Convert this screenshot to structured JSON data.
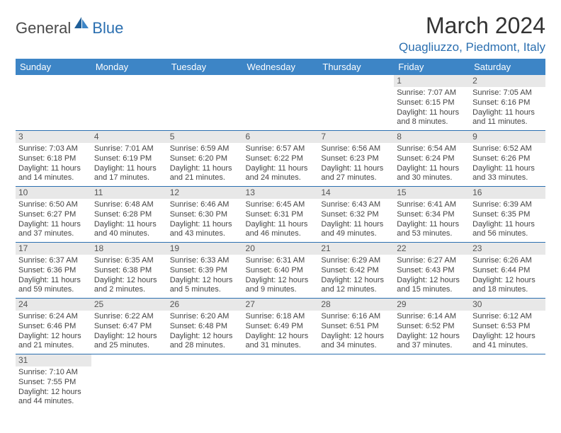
{
  "logo": {
    "part1": "General",
    "part2": "Blue"
  },
  "title": "March 2024",
  "subtitle": "Quagliuzzo, Piedmont, Italy",
  "colors": {
    "header_bg": "#3d85c6",
    "header_fg": "#ffffff",
    "accent": "#2b6fb0",
    "daynum_bg": "#e8e8e8",
    "text": "#333333",
    "detail_text": "#444444",
    "logo_gray": "#4a4a4a"
  },
  "typography": {
    "title_fontsize": 32,
    "subtitle_fontsize": 17,
    "header_fontsize": 13,
    "cell_fontsize": 11,
    "daynum_fontsize": 12,
    "logo_fontsize": 22
  },
  "weekdays": [
    "Sunday",
    "Monday",
    "Tuesday",
    "Wednesday",
    "Thursday",
    "Friday",
    "Saturday"
  ],
  "weeks": [
    [
      null,
      null,
      null,
      null,
      null,
      {
        "n": "1",
        "sr": "Sunrise: 7:07 AM",
        "ss": "Sunset: 6:15 PM",
        "dl1": "Daylight: 11 hours",
        "dl2": "and 8 minutes."
      },
      {
        "n": "2",
        "sr": "Sunrise: 7:05 AM",
        "ss": "Sunset: 6:16 PM",
        "dl1": "Daylight: 11 hours",
        "dl2": "and 11 minutes."
      }
    ],
    [
      {
        "n": "3",
        "sr": "Sunrise: 7:03 AM",
        "ss": "Sunset: 6:18 PM",
        "dl1": "Daylight: 11 hours",
        "dl2": "and 14 minutes."
      },
      {
        "n": "4",
        "sr": "Sunrise: 7:01 AM",
        "ss": "Sunset: 6:19 PM",
        "dl1": "Daylight: 11 hours",
        "dl2": "and 17 minutes."
      },
      {
        "n": "5",
        "sr": "Sunrise: 6:59 AM",
        "ss": "Sunset: 6:20 PM",
        "dl1": "Daylight: 11 hours",
        "dl2": "and 21 minutes."
      },
      {
        "n": "6",
        "sr": "Sunrise: 6:57 AM",
        "ss": "Sunset: 6:22 PM",
        "dl1": "Daylight: 11 hours",
        "dl2": "and 24 minutes."
      },
      {
        "n": "7",
        "sr": "Sunrise: 6:56 AM",
        "ss": "Sunset: 6:23 PM",
        "dl1": "Daylight: 11 hours",
        "dl2": "and 27 minutes."
      },
      {
        "n": "8",
        "sr": "Sunrise: 6:54 AM",
        "ss": "Sunset: 6:24 PM",
        "dl1": "Daylight: 11 hours",
        "dl2": "and 30 minutes."
      },
      {
        "n": "9",
        "sr": "Sunrise: 6:52 AM",
        "ss": "Sunset: 6:26 PM",
        "dl1": "Daylight: 11 hours",
        "dl2": "and 33 minutes."
      }
    ],
    [
      {
        "n": "10",
        "sr": "Sunrise: 6:50 AM",
        "ss": "Sunset: 6:27 PM",
        "dl1": "Daylight: 11 hours",
        "dl2": "and 37 minutes."
      },
      {
        "n": "11",
        "sr": "Sunrise: 6:48 AM",
        "ss": "Sunset: 6:28 PM",
        "dl1": "Daylight: 11 hours",
        "dl2": "and 40 minutes."
      },
      {
        "n": "12",
        "sr": "Sunrise: 6:46 AM",
        "ss": "Sunset: 6:30 PM",
        "dl1": "Daylight: 11 hours",
        "dl2": "and 43 minutes."
      },
      {
        "n": "13",
        "sr": "Sunrise: 6:45 AM",
        "ss": "Sunset: 6:31 PM",
        "dl1": "Daylight: 11 hours",
        "dl2": "and 46 minutes."
      },
      {
        "n": "14",
        "sr": "Sunrise: 6:43 AM",
        "ss": "Sunset: 6:32 PM",
        "dl1": "Daylight: 11 hours",
        "dl2": "and 49 minutes."
      },
      {
        "n": "15",
        "sr": "Sunrise: 6:41 AM",
        "ss": "Sunset: 6:34 PM",
        "dl1": "Daylight: 11 hours",
        "dl2": "and 53 minutes."
      },
      {
        "n": "16",
        "sr": "Sunrise: 6:39 AM",
        "ss": "Sunset: 6:35 PM",
        "dl1": "Daylight: 11 hours",
        "dl2": "and 56 minutes."
      }
    ],
    [
      {
        "n": "17",
        "sr": "Sunrise: 6:37 AM",
        "ss": "Sunset: 6:36 PM",
        "dl1": "Daylight: 11 hours",
        "dl2": "and 59 minutes."
      },
      {
        "n": "18",
        "sr": "Sunrise: 6:35 AM",
        "ss": "Sunset: 6:38 PM",
        "dl1": "Daylight: 12 hours",
        "dl2": "and 2 minutes."
      },
      {
        "n": "19",
        "sr": "Sunrise: 6:33 AM",
        "ss": "Sunset: 6:39 PM",
        "dl1": "Daylight: 12 hours",
        "dl2": "and 5 minutes."
      },
      {
        "n": "20",
        "sr": "Sunrise: 6:31 AM",
        "ss": "Sunset: 6:40 PM",
        "dl1": "Daylight: 12 hours",
        "dl2": "and 9 minutes."
      },
      {
        "n": "21",
        "sr": "Sunrise: 6:29 AM",
        "ss": "Sunset: 6:42 PM",
        "dl1": "Daylight: 12 hours",
        "dl2": "and 12 minutes."
      },
      {
        "n": "22",
        "sr": "Sunrise: 6:27 AM",
        "ss": "Sunset: 6:43 PM",
        "dl1": "Daylight: 12 hours",
        "dl2": "and 15 minutes."
      },
      {
        "n": "23",
        "sr": "Sunrise: 6:26 AM",
        "ss": "Sunset: 6:44 PM",
        "dl1": "Daylight: 12 hours",
        "dl2": "and 18 minutes."
      }
    ],
    [
      {
        "n": "24",
        "sr": "Sunrise: 6:24 AM",
        "ss": "Sunset: 6:46 PM",
        "dl1": "Daylight: 12 hours",
        "dl2": "and 21 minutes."
      },
      {
        "n": "25",
        "sr": "Sunrise: 6:22 AM",
        "ss": "Sunset: 6:47 PM",
        "dl1": "Daylight: 12 hours",
        "dl2": "and 25 minutes."
      },
      {
        "n": "26",
        "sr": "Sunrise: 6:20 AM",
        "ss": "Sunset: 6:48 PM",
        "dl1": "Daylight: 12 hours",
        "dl2": "and 28 minutes."
      },
      {
        "n": "27",
        "sr": "Sunrise: 6:18 AM",
        "ss": "Sunset: 6:49 PM",
        "dl1": "Daylight: 12 hours",
        "dl2": "and 31 minutes."
      },
      {
        "n": "28",
        "sr": "Sunrise: 6:16 AM",
        "ss": "Sunset: 6:51 PM",
        "dl1": "Daylight: 12 hours",
        "dl2": "and 34 minutes."
      },
      {
        "n": "29",
        "sr": "Sunrise: 6:14 AM",
        "ss": "Sunset: 6:52 PM",
        "dl1": "Daylight: 12 hours",
        "dl2": "and 37 minutes."
      },
      {
        "n": "30",
        "sr": "Sunrise: 6:12 AM",
        "ss": "Sunset: 6:53 PM",
        "dl1": "Daylight: 12 hours",
        "dl2": "and 41 minutes."
      }
    ],
    [
      {
        "n": "31",
        "sr": "Sunrise: 7:10 AM",
        "ss": "Sunset: 7:55 PM",
        "dl1": "Daylight: 12 hours",
        "dl2": "and 44 minutes."
      },
      null,
      null,
      null,
      null,
      null,
      null
    ]
  ]
}
